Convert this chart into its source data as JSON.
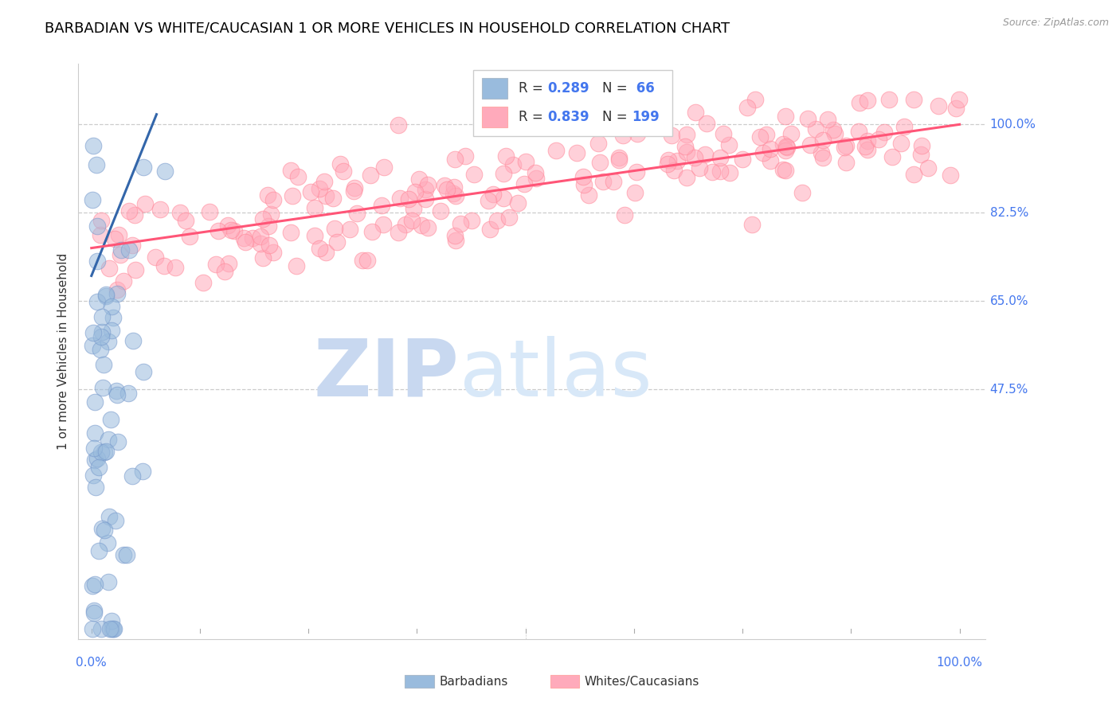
{
  "title": "BARBADIAN VS WHITE/CAUCASIAN 1 OR MORE VEHICLES IN HOUSEHOLD CORRELATION CHART",
  "source": "Source: ZipAtlas.com",
  "ylabel": "1 or more Vehicles in Household",
  "ylabel_ticks": [
    "47.5%",
    "65.0%",
    "82.5%",
    "100.0%"
  ],
  "ylabel_tick_vals": [
    0.475,
    0.65,
    0.825,
    1.0
  ],
  "watermark_zip": "ZIP",
  "watermark_atlas": "atlas",
  "legend_R_blue": "R = 0.289",
  "legend_N_blue": "N =  66",
  "legend_R_pink": "R = 0.839",
  "legend_N_pink": "N = 199",
  "blue_color": "#99BBDD",
  "blue_edge_color": "#7799CC",
  "pink_color": "#FFAABB",
  "pink_edge_color": "#FF8899",
  "blue_line_color": "#3366AA",
  "pink_line_color": "#FF5577",
  "right_label_color": "#4477EE",
  "title_fontsize": 13,
  "axis_label_fontsize": 11,
  "scatter_size": 220,
  "scatter_alpha": 0.55
}
